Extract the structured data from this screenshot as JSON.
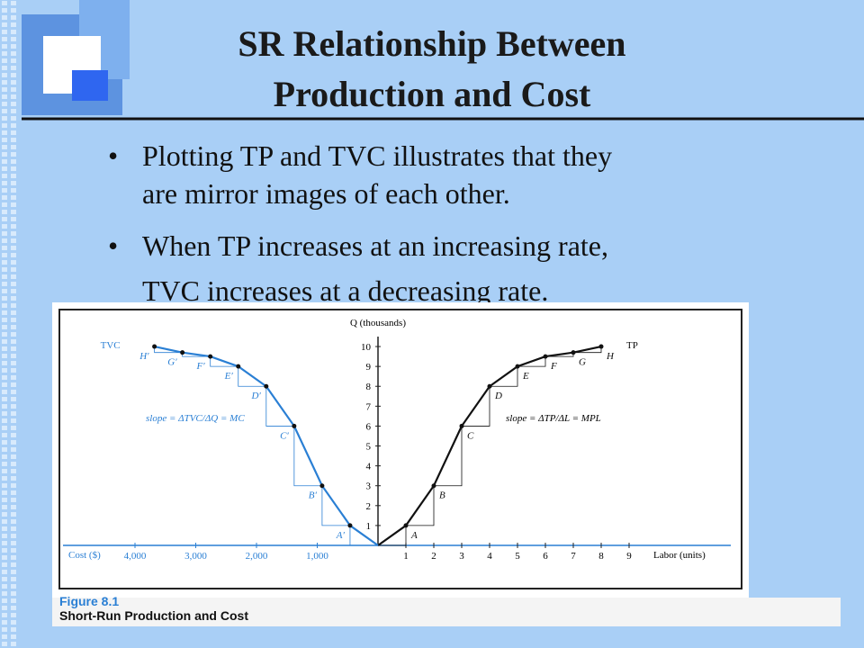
{
  "slide": {
    "title": [
      "SR Relationship Between",
      "Production and Cost"
    ],
    "bullets": [
      [
        "Plotting TP and TVC illustrates that they",
        "are mirror images of each other."
      ],
      [
        "When TP increases at an increasing rate,",
        "TVC increases at a decreasing rate."
      ]
    ]
  },
  "figure": {
    "number": "Figure 8.1",
    "caption": "Short-Run Production and Cost"
  },
  "chart_data": {
    "type": "line",
    "y_label": "Q (thousands)",
    "ylim": [
      0,
      10.5
    ],
    "yticks": [
      1,
      2,
      3,
      4,
      5,
      6,
      7,
      8,
      9,
      10
    ],
    "x_label": "Labor (units)",
    "xlim": [
      0,
      10
    ],
    "xticks": [
      1,
      2,
      3,
      4,
      5,
      6,
      7,
      8,
      9
    ],
    "x2_label": "Cost ($)",
    "x2lim": [
      0,
      5200
    ],
    "x2ticks": [
      {
        "value": 4000,
        "label": "4,000"
      },
      {
        "value": 3000,
        "label": "3,000"
      },
      {
        "value": 2000,
        "label": "2,000"
      },
      {
        "value": 1000,
        "label": "1,000"
      }
    ],
    "series": [
      {
        "name": "TP",
        "color": "#111111",
        "x": [
          0,
          1,
          2,
          3,
          4,
          5,
          6,
          7,
          8
        ],
        "values": [
          0,
          1,
          3,
          6,
          8,
          9,
          9.5,
          9.7,
          10
        ],
        "point_labels": [
          null,
          "A",
          "B",
          "C",
          "D",
          "E",
          "F",
          "G",
          "H"
        ]
      },
      {
        "name": "TVC",
        "color": "#2a7fd4",
        "axis": "x2",
        "x": [
          0,
          460,
          920,
          1380,
          1840,
          2300,
          2760,
          3220,
          3680
        ],
        "values": [
          0,
          1,
          3,
          6,
          8,
          9,
          9.5,
          9.7,
          10
        ],
        "point_labels": [
          null,
          "A′",
          "B′",
          "C′",
          "D′",
          "E′",
          "F′",
          "G′",
          "H′"
        ]
      }
    ],
    "annotations": [
      "slope = ΔTP/ΔL = MPL",
      "slope = ΔTVC/ΔQ = MC"
    ]
  }
}
